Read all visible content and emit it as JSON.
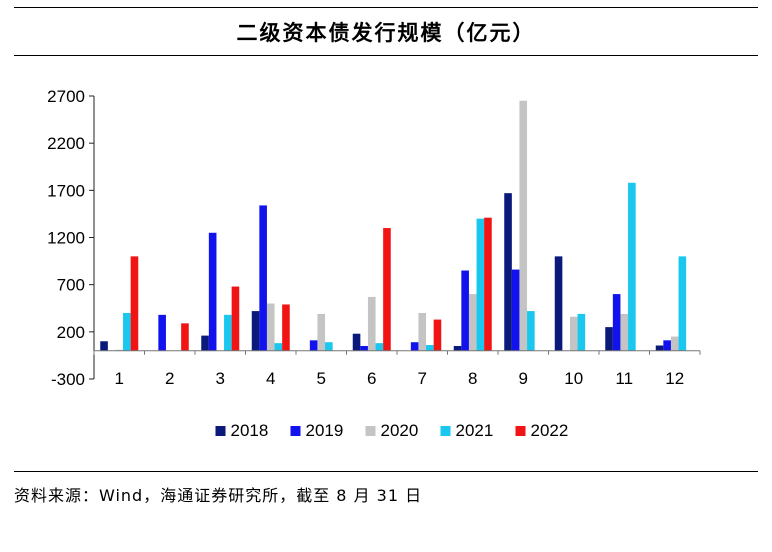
{
  "header": {
    "title": "二级资本债发行规模（亿元）"
  },
  "footer": {
    "source": "资料来源：Wind，海通证券研究所，截至 8 月 31 日"
  },
  "chart_data": {
    "type": "bar",
    "title": "二级资本债发行规模（亿元）",
    "xlabel": "",
    "ylabel": "",
    "ylim": [
      -300,
      2700
    ],
    "yticks": [
      -300,
      200,
      700,
      1200,
      1700,
      2200,
      2700
    ],
    "categories": [
      "1",
      "2",
      "3",
      "4",
      "5",
      "6",
      "7",
      "8",
      "9",
      "10",
      "11",
      "12"
    ],
    "legend_position": "bottom-center",
    "series": [
      {
        "name": "2018",
        "color": "#0b1a7a",
        "values": [
          100,
          0,
          160,
          420,
          0,
          180,
          0,
          50,
          1670,
          1000,
          250,
          55
        ]
      },
      {
        "name": "2019",
        "color": "#1212ee",
        "values": [
          0,
          380,
          1250,
          1540,
          110,
          50,
          90,
          850,
          860,
          0,
          600,
          110
        ]
      },
      {
        "name": "2020",
        "color": "#c4c4c4",
        "values": [
          10,
          0,
          0,
          500,
          390,
          570,
          400,
          600,
          2650,
          360,
          390,
          150
        ]
      },
      {
        "name": "2021",
        "color": "#19c7ef",
        "values": [
          400,
          0,
          380,
          80,
          90,
          80,
          60,
          1400,
          420,
          390,
          1780,
          1000
        ]
      },
      {
        "name": "2022",
        "color": "#f01414",
        "values": [
          1000,
          290,
          680,
          490,
          0,
          1300,
          330,
          1410,
          0,
          0,
          0,
          0
        ]
      }
    ]
  }
}
